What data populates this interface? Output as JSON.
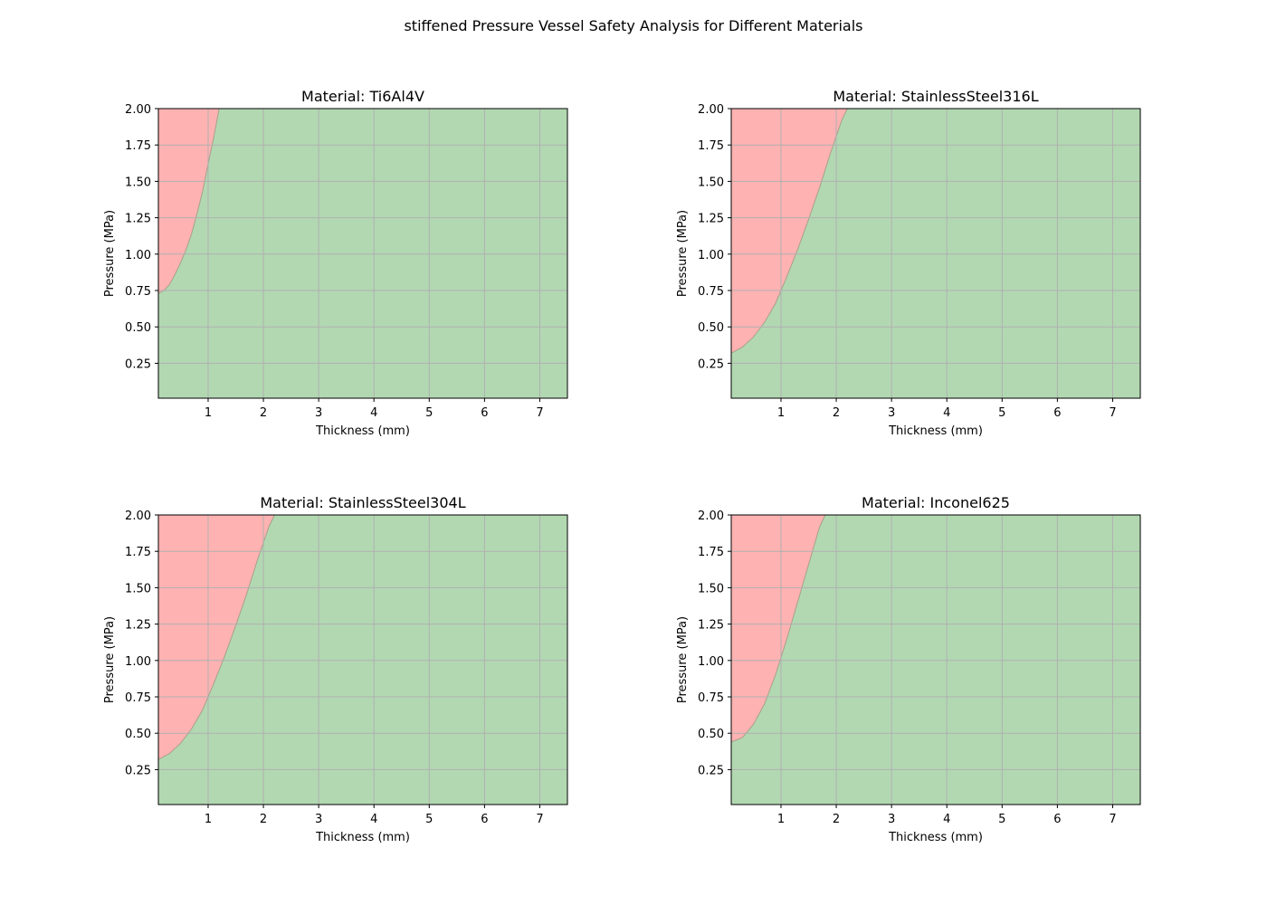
{
  "figure": {
    "title": "stiffened Pressure Vessel Safety Analysis for Different Materials"
  },
  "colors": {
    "unsafe": "#ffb2b2",
    "safe": "#b2d8b2",
    "boundary": "#a8a08a",
    "grid": "#b0b0b0"
  },
  "chart_data": [
    {
      "type": "heatmap",
      "title": "Material: Ti6Al4V",
      "xlabel": "Thickness (mm)",
      "ylabel": "Pressure (MPa)",
      "xlim": [
        0.1,
        7.5
      ],
      "ylim": [
        0.01,
        2.0
      ],
      "xticks": [
        1,
        2,
        3,
        4,
        5,
        6,
        7
      ],
      "yticks": [
        0.25,
        0.5,
        0.75,
        1.0,
        1.25,
        1.5,
        1.75,
        2.0
      ],
      "ytick_labels": [
        "0.25",
        "0.50",
        "0.75",
        "1.00",
        "1.25",
        "1.50",
        "1.75",
        "2.00"
      ],
      "grid": true,
      "regions": [
        "unsafe",
        "safe"
      ],
      "boundary": {
        "x": [
          0.1,
          0.2,
          0.3,
          0.4,
          0.5,
          0.6,
          0.7,
          0.8,
          0.9,
          1.0,
          1.1,
          1.2
        ],
        "y": [
          0.73,
          0.75,
          0.79,
          0.86,
          0.94,
          1.03,
          1.14,
          1.28,
          1.43,
          1.62,
          1.8,
          2.0
        ]
      }
    },
    {
      "type": "heatmap",
      "title": "Material: StainlessSteel316L",
      "xlabel": "Thickness (mm)",
      "ylabel": "Pressure (MPa)",
      "xlim": [
        0.1,
        7.5
      ],
      "ylim": [
        0.01,
        2.0
      ],
      "xticks": [
        1,
        2,
        3,
        4,
        5,
        6,
        7
      ],
      "yticks": [
        0.25,
        0.5,
        0.75,
        1.0,
        1.25,
        1.5,
        1.75,
        2.0
      ],
      "ytick_labels": [
        "0.25",
        "0.50",
        "0.75",
        "1.00",
        "1.25",
        "1.50",
        "1.75",
        "2.00"
      ],
      "grid": true,
      "regions": [
        "unsafe",
        "safe"
      ],
      "boundary": {
        "x": [
          0.1,
          0.3,
          0.5,
          0.7,
          0.9,
          1.1,
          1.3,
          1.5,
          1.7,
          1.9,
          2.1,
          2.2
        ],
        "y": [
          0.32,
          0.36,
          0.43,
          0.53,
          0.66,
          0.84,
          1.03,
          1.24,
          1.46,
          1.7,
          1.92,
          2.0
        ]
      }
    },
    {
      "type": "heatmap",
      "title": "Material: StainlessSteel304L",
      "xlabel": "Thickness (mm)",
      "ylabel": "Pressure (MPa)",
      "xlim": [
        0.1,
        7.5
      ],
      "ylim": [
        0.01,
        2.0
      ],
      "xticks": [
        1,
        2,
        3,
        4,
        5,
        6,
        7
      ],
      "yticks": [
        0.25,
        0.5,
        0.75,
        1.0,
        1.25,
        1.5,
        1.75,
        2.0
      ],
      "ytick_labels": [
        "0.25",
        "0.50",
        "0.75",
        "1.00",
        "1.25",
        "1.50",
        "1.75",
        "2.00"
      ],
      "grid": true,
      "regions": [
        "unsafe",
        "safe"
      ],
      "boundary": {
        "x": [
          0.1,
          0.3,
          0.5,
          0.7,
          0.9,
          1.1,
          1.3,
          1.5,
          1.7,
          1.9,
          2.1,
          2.2
        ],
        "y": [
          0.32,
          0.36,
          0.43,
          0.53,
          0.66,
          0.84,
          1.03,
          1.24,
          1.46,
          1.7,
          1.92,
          2.0
        ]
      }
    },
    {
      "type": "heatmap",
      "title": "Material: Inconel625",
      "xlabel": "Thickness (mm)",
      "ylabel": "Pressure (MPa)",
      "xlim": [
        0.1,
        7.5
      ],
      "ylim": [
        0.01,
        2.0
      ],
      "xticks": [
        1,
        2,
        3,
        4,
        5,
        6,
        7
      ],
      "yticks": [
        0.25,
        0.5,
        0.75,
        1.0,
        1.25,
        1.5,
        1.75,
        2.0
      ],
      "ytick_labels": [
        "0.25",
        "0.50",
        "0.75",
        "1.00",
        "1.25",
        "1.50",
        "1.75",
        "2.00"
      ],
      "grid": true,
      "regions": [
        "unsafe",
        "safe"
      ],
      "boundary": {
        "x": [
          0.1,
          0.3,
          0.5,
          0.7,
          0.9,
          1.1,
          1.3,
          1.5,
          1.7,
          1.8
        ],
        "y": [
          0.44,
          0.47,
          0.56,
          0.7,
          0.9,
          1.14,
          1.4,
          1.66,
          1.92,
          2.0
        ]
      }
    }
  ]
}
